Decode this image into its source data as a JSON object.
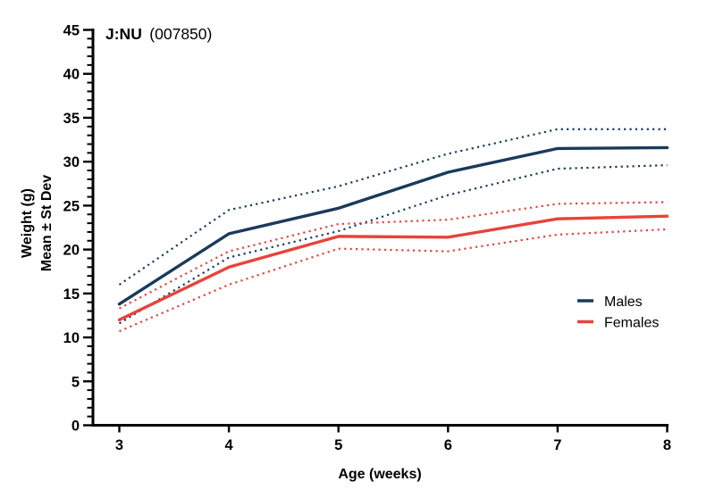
{
  "title": {
    "strain": "J:NU",
    "stock": "(007850)"
  },
  "axes": {
    "x": {
      "label": "Age (weeks)",
      "min": 3,
      "max": 8
    },
    "y": {
      "label_line1": "Weight (g)",
      "label_line2": "Mean ± St Dev",
      "min": 0,
      "max": 45
    }
  },
  "colors": {
    "males": "#1b3a5c",
    "females": "#e9423a",
    "axis": "#000000"
  },
  "chart_data": {
    "type": "line",
    "title": "J:NU (007850)",
    "xlabel": "Age (weeks)",
    "ylabel": "Weight (g) Mean ± St Dev",
    "x": [
      3,
      4,
      5,
      6,
      7,
      8
    ],
    "x_ticks": [
      3,
      4,
      5,
      6,
      7,
      8
    ],
    "y_ticks": [
      0,
      5,
      10,
      15,
      20,
      25,
      30,
      35,
      40,
      45
    ],
    "y_minor_tick_step": 1,
    "xlim": [
      3,
      8
    ],
    "ylim": [
      0,
      45
    ],
    "grid": false,
    "legend_position": "right-middle",
    "legend_entries": [
      "Males",
      "Females"
    ],
    "series": [
      {
        "name": "Males mean",
        "group": "males",
        "style": "solid",
        "color": "#1b3a5c",
        "values": [
          13.8,
          21.8,
          24.7,
          28.8,
          31.5,
          31.6
        ]
      },
      {
        "name": "Males +1 StDev",
        "group": "males",
        "style": "dotted",
        "color": "#1b3a5c",
        "values": [
          16.0,
          24.5,
          27.2,
          30.9,
          33.7,
          33.7
        ]
      },
      {
        "name": "Males -1 StDev",
        "group": "males",
        "style": "dotted",
        "color": "#1b3a5c",
        "values": [
          11.6,
          19.1,
          22.1,
          26.2,
          29.2,
          29.6
        ]
      },
      {
        "name": "Females mean",
        "group": "females",
        "style": "solid",
        "color": "#e9423a",
        "values": [
          12.0,
          18.0,
          21.5,
          21.4,
          23.5,
          23.8
        ]
      },
      {
        "name": "Females +1 StDev",
        "group": "females",
        "style": "dotted",
        "color": "#e9423a",
        "values": [
          13.3,
          19.8,
          22.9,
          23.4,
          25.2,
          25.4
        ]
      },
      {
        "name": "Females -1 StDev",
        "group": "females",
        "style": "dotted",
        "color": "#e9423a",
        "values": [
          10.7,
          16.0,
          20.1,
          19.8,
          21.7,
          22.3
        ]
      }
    ]
  }
}
